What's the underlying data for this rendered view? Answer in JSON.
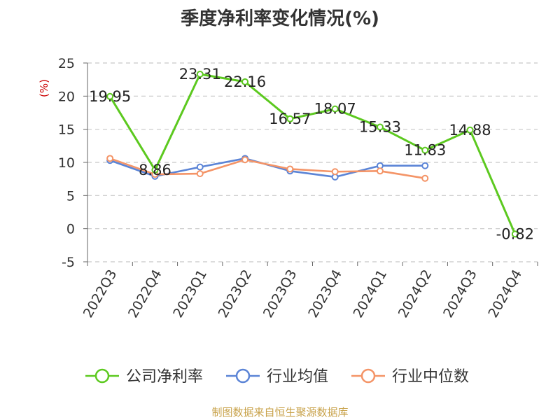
{
  "chart_data": {
    "type": "line",
    "title": "季度净利率变化情况(%)",
    "ylabel": "(%)",
    "ylim": [
      -5,
      25
    ],
    "yticks": [
      -5,
      0,
      5,
      10,
      15,
      20,
      25
    ],
    "categories": [
      "2022Q3",
      "2022Q4",
      "2023Q1",
      "2023Q2",
      "2023Q3",
      "2023Q4",
      "2024Q1",
      "2024Q2",
      "2024Q3",
      "2024Q4"
    ],
    "grid": true,
    "legend_position": "bottom",
    "series": [
      {
        "name": "公司净利率",
        "color": "#5cc91f",
        "values": [
          19.95,
          8.86,
          23.31,
          22.16,
          16.57,
          18.07,
          15.33,
          11.83,
          14.88,
          -0.82
        ],
        "labels": [
          "19.95",
          "8.86",
          "23.31",
          "22.16",
          "16.57",
          "18.07",
          "15.33",
          "11.83",
          "14.88",
          "-0.82"
        ]
      },
      {
        "name": "行业均值",
        "color": "#5b84d6",
        "values": [
          10.3,
          7.9,
          9.3,
          10.6,
          8.7,
          7.8,
          9.5,
          9.5,
          null,
          null
        ]
      },
      {
        "name": "行业中位数",
        "color": "#f49467",
        "values": [
          10.6,
          8.2,
          8.3,
          10.4,
          9.0,
          8.6,
          8.7,
          7.6,
          null,
          null
        ]
      }
    ]
  },
  "footer": {
    "source": "制图数据来自恒生聚源数据库"
  }
}
